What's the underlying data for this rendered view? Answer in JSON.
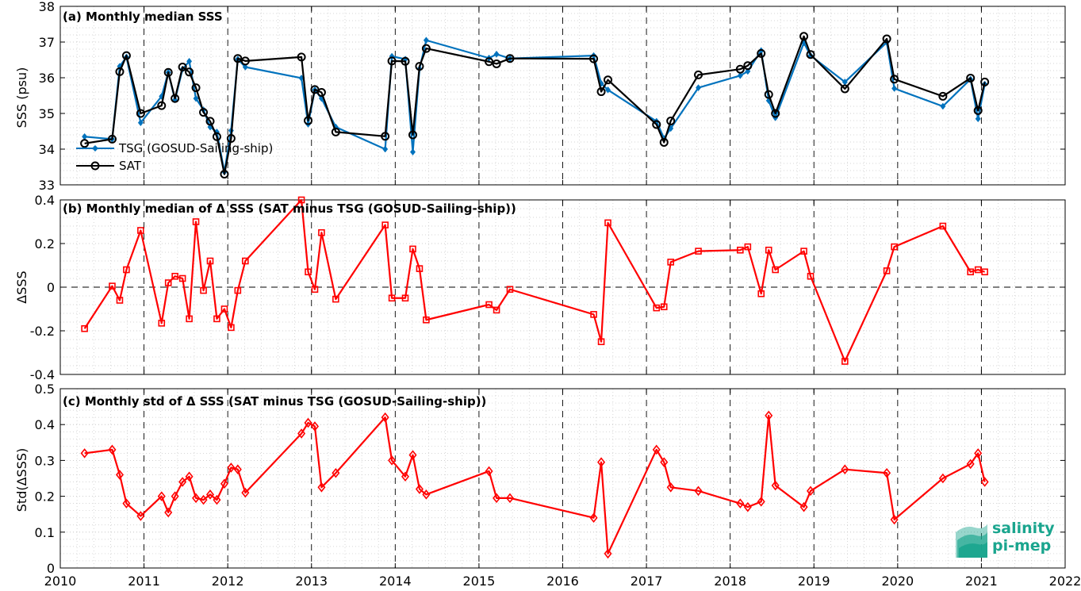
{
  "logo": {
    "line1": "salinity",
    "line2": "pi-mep",
    "color": "#1aa58e"
  },
  "chart_data": [
    {
      "type": "line",
      "title": "(a) Monthly median SSS",
      "ylabel": "SSS (psu)",
      "xlim": [
        2010,
        2022
      ],
      "ylim": [
        33,
        38
      ],
      "yticks": [
        "33",
        "34",
        "35",
        "36",
        "37",
        "38"
      ],
      "xticks": [
        "2010",
        "2011",
        "2012",
        "2013",
        "2014",
        "2015",
        "2016",
        "2017",
        "2018",
        "2019",
        "2020",
        "2021",
        "2022"
      ],
      "grid": true,
      "legend": "left",
      "series": [
        {
          "name": "TSG (GOSUD-Sailing-ship)",
          "color": "#0072bd",
          "marker": "diamond",
          "x": [
            2010.29,
            2010.62,
            2010.71,
            2010.79,
            2010.96,
            2011.21,
            2011.29,
            2011.37,
            2011.46,
            2011.54,
            2011.62,
            2011.71,
            2011.79,
            2011.87,
            2011.96,
            2012.04,
            2012.12,
            2012.21,
            2012.88,
            2012.96,
            2013.04,
            2013.12,
            2013.29,
            2013.88,
            2013.96,
            2014.12,
            2014.21,
            2014.29,
            2014.37,
            2015.12,
            2015.21,
            2015.37,
            2016.37,
            2016.46,
            2016.54,
            2017.12,
            2017.21,
            2017.29,
            2017.62,
            2018.12,
            2018.21,
            2018.37,
            2018.46,
            2018.54,
            2018.88,
            2018.96,
            2019.37,
            2019.87,
            2019.96,
            2020.54,
            2020.87,
            2020.96,
            2021.04
          ],
          "y": [
            34.35,
            34.28,
            36.32,
            36.58,
            34.74,
            35.48,
            36.15,
            35.38,
            36.24,
            36.46,
            35.42,
            35.1,
            34.62,
            34.48,
            33.36,
            34.52,
            36.52,
            36.3,
            35.99,
            34.7,
            35.66,
            35.42,
            34.62,
            34.0,
            36.6,
            36.52,
            33.92,
            36.25,
            37.05,
            36.55,
            36.66,
            36.54,
            36.62,
            35.84,
            35.66,
            34.78,
            34.3,
            34.58,
            35.72,
            36.06,
            36.18,
            36.76,
            35.36,
            34.88,
            36.98,
            36.62,
            35.88,
            36.99,
            35.7,
            35.2,
            35.96,
            34.85,
            35.82
          ]
        },
        {
          "name": "SAT",
          "color": "#000000",
          "marker": "circle",
          "x": [
            2010.29,
            2010.62,
            2010.71,
            2010.79,
            2010.96,
            2011.21,
            2011.29,
            2011.37,
            2011.46,
            2011.54,
            2011.62,
            2011.71,
            2011.79,
            2011.87,
            2011.96,
            2012.04,
            2012.12,
            2012.21,
            2012.88,
            2012.96,
            2013.04,
            2013.12,
            2013.29,
            2013.88,
            2013.96,
            2014.12,
            2014.21,
            2014.29,
            2014.37,
            2015.12,
            2015.21,
            2015.37,
            2016.37,
            2016.46,
            2016.54,
            2017.12,
            2017.21,
            2017.29,
            2017.62,
            2018.12,
            2018.21,
            2018.37,
            2018.46,
            2018.54,
            2018.88,
            2018.96,
            2019.37,
            2019.87,
            2019.96,
            2020.54,
            2020.87,
            2020.96,
            2021.04
          ],
          "y": [
            34.16,
            34.28,
            36.17,
            36.62,
            35.0,
            35.22,
            36.15,
            35.42,
            36.3,
            36.16,
            35.72,
            35.03,
            34.78,
            34.35,
            33.3,
            34.3,
            36.54,
            36.47,
            36.58,
            34.8,
            35.67,
            35.59,
            34.48,
            34.36,
            36.47,
            36.46,
            34.4,
            36.32,
            36.82,
            36.45,
            36.39,
            36.54,
            36.53,
            35.61,
            35.94,
            34.69,
            34.19,
            34.79,
            36.08,
            36.24,
            36.34,
            36.68,
            35.53,
            35.0,
            37.16,
            36.65,
            35.69,
            37.09,
            35.96,
            35.48,
            35.99,
            35.08,
            35.88
          ]
        }
      ]
    },
    {
      "type": "line",
      "title": "(b) Monthly median of Δ SSS (SAT minus TSG (GOSUD-Sailing-ship))",
      "ylabel": "ΔSSS",
      "xlim": [
        2010,
        2022
      ],
      "ylim": [
        -0.4,
        0.4
      ],
      "yticks": [
        "-0.4",
        "-0.2",
        "0",
        "0.2",
        "0.4"
      ],
      "grid": true,
      "series": [
        {
          "name": "",
          "color": "#ff0000",
          "marker": "square",
          "x": [
            2010.29,
            2010.62,
            2010.71,
            2010.79,
            2010.96,
            2011.21,
            2011.29,
            2011.37,
            2011.46,
            2011.54,
            2011.62,
            2011.71,
            2011.79,
            2011.87,
            2011.96,
            2012.04,
            2012.12,
            2012.21,
            2012.88,
            2012.96,
            2013.04,
            2013.12,
            2013.29,
            2013.88,
            2013.96,
            2014.12,
            2014.21,
            2014.29,
            2014.37,
            2015.12,
            2015.21,
            2015.37,
            2016.37,
            2016.46,
            2016.54,
            2017.12,
            2017.21,
            2017.29,
            2017.62,
            2018.12,
            2018.21,
            2018.37,
            2018.46,
            2018.54,
            2018.88,
            2018.96,
            2019.37,
            2019.87,
            2019.96,
            2020.54,
            2020.87,
            2020.96,
            2021.04
          ],
          "y": [
            -0.19,
            0.005,
            -0.06,
            0.08,
            0.26,
            -0.165,
            0.02,
            0.05,
            0.04,
            -0.145,
            0.3,
            -0.015,
            0.12,
            -0.145,
            -0.1,
            -0.185,
            -0.015,
            0.12,
            0.4,
            0.07,
            -0.01,
            0.25,
            -0.055,
            0.285,
            -0.05,
            -0.05,
            0.175,
            0.085,
            -0.15,
            -0.08,
            -0.105,
            -0.01,
            -0.125,
            -0.25,
            0.295,
            -0.095,
            -0.09,
            0.115,
            0.165,
            0.17,
            0.185,
            -0.03,
            0.17,
            0.08,
            0.165,
            0.05,
            -0.34,
            0.075,
            0.185,
            0.28,
            0.07,
            0.08,
            0.07
          ]
        }
      ]
    },
    {
      "type": "line",
      "title": "(c) Monthly std of Δ SSS (SAT minus TSG (GOSUD-Sailing-ship))",
      "ylabel": "Std(ΔSSS)",
      "xlim": [
        2010,
        2022
      ],
      "ylim": [
        0,
        0.5
      ],
      "yticks": [
        "0",
        "0.1",
        "0.2",
        "0.3",
        "0.4",
        "0.5"
      ],
      "grid": true,
      "series": [
        {
          "name": "",
          "color": "#ff0000",
          "marker": "diamond",
          "x": [
            2010.29,
            2010.62,
            2010.71,
            2010.79,
            2010.96,
            2011.21,
            2011.29,
            2011.37,
            2011.46,
            2011.54,
            2011.62,
            2011.71,
            2011.79,
            2011.87,
            2011.96,
            2012.04,
            2012.12,
            2012.21,
            2012.88,
            2012.96,
            2013.04,
            2013.12,
            2013.29,
            2013.88,
            2013.96,
            2014.12,
            2014.21,
            2014.29,
            2014.37,
            2015.12,
            2015.21,
            2015.37,
            2016.37,
            2016.46,
            2016.54,
            2017.12,
            2017.21,
            2017.29,
            2017.62,
            2018.12,
            2018.21,
            2018.37,
            2018.46,
            2018.54,
            2018.88,
            2018.96,
            2019.37,
            2019.87,
            2019.96,
            2020.54,
            2020.87,
            2020.96,
            2021.04
          ],
          "y": [
            0.32,
            0.33,
            0.26,
            0.18,
            0.145,
            0.2,
            0.155,
            0.2,
            0.24,
            0.255,
            0.195,
            0.19,
            0.205,
            0.19,
            0.235,
            0.28,
            0.275,
            0.21,
            0.375,
            0.405,
            0.395,
            0.225,
            0.265,
            0.42,
            0.3,
            0.255,
            0.315,
            0.22,
            0.205,
            0.27,
            0.195,
            0.195,
            0.14,
            0.295,
            0.04,
            0.33,
            0.295,
            0.225,
            0.215,
            0.18,
            0.17,
            0.185,
            0.425,
            0.23,
            0.17,
            0.215,
            0.275,
            0.265,
            0.135,
            0.25,
            0.29,
            0.32,
            0.24
          ]
        }
      ]
    }
  ]
}
